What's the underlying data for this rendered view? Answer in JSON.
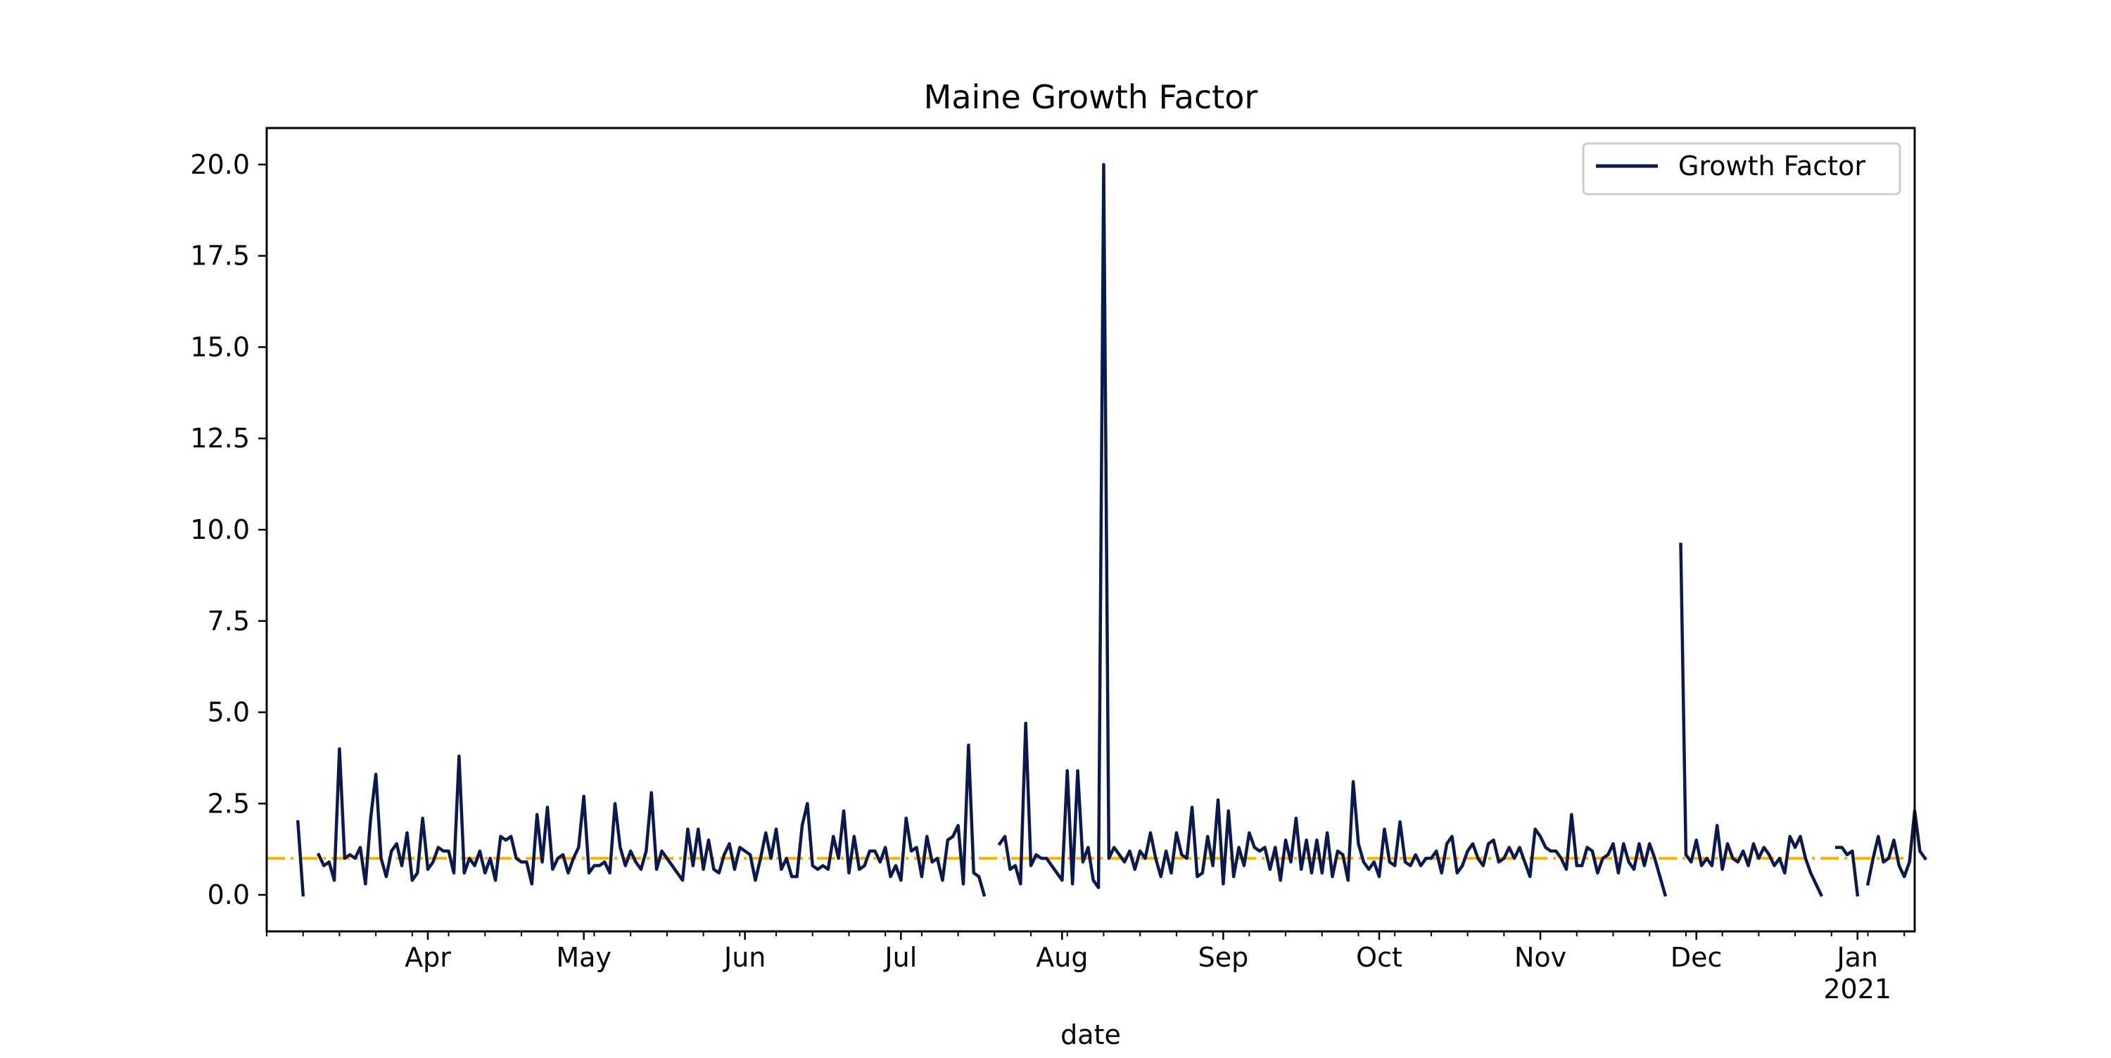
{
  "chart_data": {
    "type": "line",
    "title": "Maine Growth Factor",
    "xlabel": "date",
    "ylabel": "",
    "x_range": [
      "2020-03-01",
      "2021-01-12"
    ],
    "ylim": [
      -1,
      21
    ],
    "yticks": [
      0,
      2.5,
      5,
      7.5,
      10,
      12.5,
      15,
      17.5,
      20
    ],
    "ytick_labels": [
      "0.0",
      "2.5",
      "5.0",
      "7.5",
      "10.0",
      "12.5",
      "15.0",
      "17.5",
      "20.0"
    ],
    "xticks": [
      {
        "date": "2020-04-01",
        "label": "Apr",
        "sublabel": ""
      },
      {
        "date": "2020-05-01",
        "label": "May",
        "sublabel": ""
      },
      {
        "date": "2020-06-01",
        "label": "Jun",
        "sublabel": ""
      },
      {
        "date": "2020-07-01",
        "label": "Jul",
        "sublabel": ""
      },
      {
        "date": "2020-08-01",
        "label": "Aug",
        "sublabel": ""
      },
      {
        "date": "2020-09-01",
        "label": "Sep",
        "sublabel": ""
      },
      {
        "date": "2020-10-01",
        "label": "Oct",
        "sublabel": ""
      },
      {
        "date": "2020-11-01",
        "label": "Nov",
        "sublabel": ""
      },
      {
        "date": "2020-12-01",
        "label": "Dec",
        "sublabel": ""
      },
      {
        "date": "2021-01-01",
        "label": "Jan",
        "sublabel": "2021"
      }
    ],
    "grid": false,
    "legend_position": "top-right",
    "reference_line": {
      "y": 1.0,
      "color": "#ffb000",
      "style": "dash-dot"
    },
    "series": [
      {
        "name": "Growth Factor",
        "color": "#0b1a4a",
        "start_date": "2020-03-07",
        "values": [
          2.0,
          0.0,
          null,
          null,
          1.1,
          0.8,
          0.9,
          0.4,
          4.0,
          1.0,
          1.1,
          1.0,
          1.3,
          0.3,
          2.1,
          3.3,
          1.0,
          0.5,
          1.2,
          1.4,
          0.8,
          1.7,
          0.4,
          0.6,
          2.1,
          0.7,
          0.9,
          1.3,
          1.2,
          1.2,
          0.6,
          3.8,
          0.6,
          1.0,
          0.8,
          1.2,
          0.6,
          1.0,
          0.4,
          1.6,
          1.5,
          1.6,
          1.0,
          0.9,
          0.9,
          0.3,
          2.2,
          0.9,
          2.4,
          0.7,
          1.0,
          1.1,
          0.6,
          1.0,
          1.3,
          2.7,
          0.6,
          0.8,
          0.8,
          0.9,
          0.6,
          2.5,
          1.3,
          0.8,
          1.2,
          0.9,
          0.7,
          1.2,
          2.8,
          0.7,
          1.2,
          1.0,
          0.8,
          0.6,
          0.4,
          1.8,
          0.8,
          1.8,
          0.7,
          1.5,
          0.7,
          0.6,
          1.1,
          1.4,
          0.7,
          1.3,
          1.2,
          1.1,
          0.4,
          1.0,
          1.7,
          1.0,
          1.8,
          0.7,
          1.0,
          0.5,
          0.5,
          1.9,
          2.5,
          0.8,
          0.7,
          0.8,
          0.7,
          1.6,
          1.0,
          2.3,
          0.6,
          1.6,
          0.7,
          0.8,
          1.2,
          1.2,
          0.9,
          1.3,
          0.5,
          0.8,
          0.4,
          2.1,
          1.2,
          1.3,
          0.5,
          1.6,
          0.9,
          1.0,
          0.4,
          1.5,
          1.6,
          1.9,
          0.3,
          4.1,
          0.6,
          0.5,
          0.0,
          null,
          null,
          1.4,
          1.6,
          0.7,
          0.8,
          0.3,
          4.7,
          0.8,
          1.1,
          1.0,
          1.0,
          0.8,
          0.6,
          0.4,
          3.4,
          0.3,
          3.4,
          0.9,
          1.3,
          0.4,
          0.2,
          20.0,
          1.0,
          1.3,
          1.1,
          0.9,
          1.2,
          0.7,
          1.2,
          1.0,
          1.7,
          1.0,
          0.5,
          1.2,
          0.6,
          1.7,
          1.1,
          1.0,
          2.4,
          0.5,
          0.6,
          1.6,
          0.8,
          2.6,
          0.3,
          2.3,
          0.5,
          1.3,
          0.8,
          1.7,
          1.3,
          1.2,
          1.3,
          0.7,
          1.3,
          0.4,
          1.5,
          0.9,
          2.1,
          0.7,
          1.5,
          0.6,
          1.5,
          0.6,
          1.7,
          0.5,
          1.2,
          1.1,
          0.4,
          3.1,
          1.4,
          0.9,
          0.7,
          0.9,
          0.5,
          1.8,
          0.9,
          0.8,
          2.0,
          0.9,
          0.8,
          1.1,
          0.8,
          1.0,
          1.0,
          1.2,
          0.6,
          1.4,
          1.6,
          0.6,
          0.8,
          1.2,
          1.4,
          1.0,
          0.8,
          1.4,
          1.5,
          0.9,
          1.0,
          1.3,
          1.0,
          1.3,
          0.9,
          0.5,
          1.8,
          1.6,
          1.3,
          1.2,
          1.2,
          1.0,
          0.7,
          2.2,
          0.8,
          0.8,
          1.3,
          1.2,
          0.6,
          1.0,
          1.1,
          1.4,
          0.6,
          1.4,
          0.9,
          0.7,
          1.4,
          0.8,
          1.4,
          1.0,
          0.5,
          0.0,
          null,
          null,
          9.6,
          1.1,
          0.9,
          1.5,
          0.8,
          1.0,
          0.8,
          1.9,
          0.7,
          1.4,
          1.0,
          0.9,
          1.2,
          0.8,
          1.4,
          1.0,
          1.3,
          1.1,
          0.8,
          1.0,
          0.6,
          1.6,
          1.3,
          1.6,
          1.0,
          0.6,
          0.3,
          0.0,
          null,
          null,
          1.3,
          1.3,
          1.1,
          1.2,
          0.0,
          null,
          0.3,
          1.0,
          1.6,
          0.9,
          1.0,
          1.5,
          0.8,
          0.5,
          0.9,
          2.3,
          1.2,
          1.0
        ]
      }
    ]
  }
}
